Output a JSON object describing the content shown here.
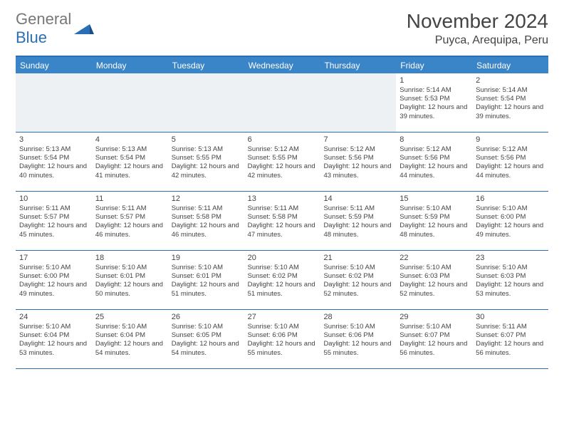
{
  "logo": {
    "part1": "General",
    "part2": "Blue"
  },
  "title": "November 2024",
  "location": "Puyca, Arequipa, Peru",
  "colors": {
    "header_bg": "#3a84c8",
    "border": "#2a6fb5",
    "empty_bg": "#eef1f3",
    "text": "#444444"
  },
  "weekdays": [
    "Sunday",
    "Monday",
    "Tuesday",
    "Wednesday",
    "Thursday",
    "Friday",
    "Saturday"
  ],
  "weeks": [
    [
      null,
      null,
      null,
      null,
      null,
      {
        "n": "1",
        "sunrise": "5:14 AM",
        "sunset": "5:53 PM",
        "daylight": "12 hours and 39 minutes."
      },
      {
        "n": "2",
        "sunrise": "5:14 AM",
        "sunset": "5:54 PM",
        "daylight": "12 hours and 39 minutes."
      }
    ],
    [
      {
        "n": "3",
        "sunrise": "5:13 AM",
        "sunset": "5:54 PM",
        "daylight": "12 hours and 40 minutes."
      },
      {
        "n": "4",
        "sunrise": "5:13 AM",
        "sunset": "5:54 PM",
        "daylight": "12 hours and 41 minutes."
      },
      {
        "n": "5",
        "sunrise": "5:13 AM",
        "sunset": "5:55 PM",
        "daylight": "12 hours and 42 minutes."
      },
      {
        "n": "6",
        "sunrise": "5:12 AM",
        "sunset": "5:55 PM",
        "daylight": "12 hours and 42 minutes."
      },
      {
        "n": "7",
        "sunrise": "5:12 AM",
        "sunset": "5:56 PM",
        "daylight": "12 hours and 43 minutes."
      },
      {
        "n": "8",
        "sunrise": "5:12 AM",
        "sunset": "5:56 PM",
        "daylight": "12 hours and 44 minutes."
      },
      {
        "n": "9",
        "sunrise": "5:12 AM",
        "sunset": "5:56 PM",
        "daylight": "12 hours and 44 minutes."
      }
    ],
    [
      {
        "n": "10",
        "sunrise": "5:11 AM",
        "sunset": "5:57 PM",
        "daylight": "12 hours and 45 minutes."
      },
      {
        "n": "11",
        "sunrise": "5:11 AM",
        "sunset": "5:57 PM",
        "daylight": "12 hours and 46 minutes."
      },
      {
        "n": "12",
        "sunrise": "5:11 AM",
        "sunset": "5:58 PM",
        "daylight": "12 hours and 46 minutes."
      },
      {
        "n": "13",
        "sunrise": "5:11 AM",
        "sunset": "5:58 PM",
        "daylight": "12 hours and 47 minutes."
      },
      {
        "n": "14",
        "sunrise": "5:11 AM",
        "sunset": "5:59 PM",
        "daylight": "12 hours and 48 minutes."
      },
      {
        "n": "15",
        "sunrise": "5:10 AM",
        "sunset": "5:59 PM",
        "daylight": "12 hours and 48 minutes."
      },
      {
        "n": "16",
        "sunrise": "5:10 AM",
        "sunset": "6:00 PM",
        "daylight": "12 hours and 49 minutes."
      }
    ],
    [
      {
        "n": "17",
        "sunrise": "5:10 AM",
        "sunset": "6:00 PM",
        "daylight": "12 hours and 49 minutes."
      },
      {
        "n": "18",
        "sunrise": "5:10 AM",
        "sunset": "6:01 PM",
        "daylight": "12 hours and 50 minutes."
      },
      {
        "n": "19",
        "sunrise": "5:10 AM",
        "sunset": "6:01 PM",
        "daylight": "12 hours and 51 minutes."
      },
      {
        "n": "20",
        "sunrise": "5:10 AM",
        "sunset": "6:02 PM",
        "daylight": "12 hours and 51 minutes."
      },
      {
        "n": "21",
        "sunrise": "5:10 AM",
        "sunset": "6:02 PM",
        "daylight": "12 hours and 52 minutes."
      },
      {
        "n": "22",
        "sunrise": "5:10 AM",
        "sunset": "6:03 PM",
        "daylight": "12 hours and 52 minutes."
      },
      {
        "n": "23",
        "sunrise": "5:10 AM",
        "sunset": "6:03 PM",
        "daylight": "12 hours and 53 minutes."
      }
    ],
    [
      {
        "n": "24",
        "sunrise": "5:10 AM",
        "sunset": "6:04 PM",
        "daylight": "12 hours and 53 minutes."
      },
      {
        "n": "25",
        "sunrise": "5:10 AM",
        "sunset": "6:04 PM",
        "daylight": "12 hours and 54 minutes."
      },
      {
        "n": "26",
        "sunrise": "5:10 AM",
        "sunset": "6:05 PM",
        "daylight": "12 hours and 54 minutes."
      },
      {
        "n": "27",
        "sunrise": "5:10 AM",
        "sunset": "6:06 PM",
        "daylight": "12 hours and 55 minutes."
      },
      {
        "n": "28",
        "sunrise": "5:10 AM",
        "sunset": "6:06 PM",
        "daylight": "12 hours and 55 minutes."
      },
      {
        "n": "29",
        "sunrise": "5:10 AM",
        "sunset": "6:07 PM",
        "daylight": "12 hours and 56 minutes."
      },
      {
        "n": "30",
        "sunrise": "5:11 AM",
        "sunset": "6:07 PM",
        "daylight": "12 hours and 56 minutes."
      }
    ]
  ]
}
